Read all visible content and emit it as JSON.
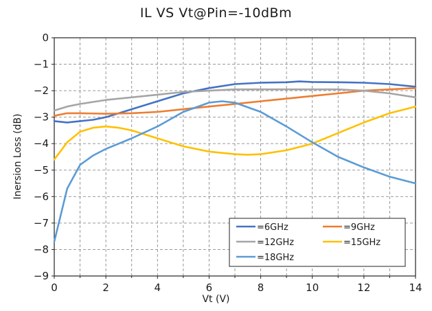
{
  "chart_data": {
    "type": "line",
    "title": "IL  VS  Vt@Pin=-10dBm",
    "xlabel": "Vt (V)",
    "ylabel": "Inersion Loss (dB)",
    "xlim": [
      0,
      14
    ],
    "ylim": [
      -9,
      0
    ],
    "xticks": [
      "0",
      "2",
      "4",
      "6",
      "8",
      "10",
      "12",
      "14"
    ],
    "yticks": [
      "0",
      "-1",
      "-2",
      "-3",
      "-4",
      "-5",
      "-6",
      "-7",
      "-8",
      "-9"
    ],
    "grid": true,
    "legend_position": "bottom-right",
    "series": [
      {
        "name": "=6GHz",
        "color": "#4472C4",
        "x": [
          0,
          0.5,
          1,
          1.5,
          2,
          3,
          4,
          5,
          6,
          7,
          8,
          9,
          9.5,
          10,
          11,
          12,
          13,
          14
        ],
        "y": [
          -3.15,
          -3.2,
          -3.15,
          -3.1,
          -3.0,
          -2.7,
          -2.4,
          -2.1,
          -1.9,
          -1.75,
          -1.7,
          -1.68,
          -1.65,
          -1.67,
          -1.68,
          -1.7,
          -1.75,
          -1.85
        ]
      },
      {
        "name": "=9GHz",
        "color": "#ED7D31",
        "x": [
          0,
          0.5,
          1,
          2,
          3,
          4,
          5,
          6,
          7,
          8,
          9,
          10,
          11,
          12,
          13,
          14
        ],
        "y": [
          -2.95,
          -2.85,
          -2.85,
          -2.87,
          -2.85,
          -2.8,
          -2.7,
          -2.6,
          -2.5,
          -2.4,
          -2.3,
          -2.2,
          -2.1,
          -2.0,
          -1.95,
          -1.9
        ]
      },
      {
        "name": "=12GHz",
        "color": "#A5A5A5",
        "x": [
          0,
          0.5,
          1,
          2,
          3,
          4,
          5,
          6,
          7,
          8,
          9,
          10,
          11,
          12,
          13,
          14
        ],
        "y": [
          -2.75,
          -2.6,
          -2.5,
          -2.35,
          -2.25,
          -2.15,
          -2.05,
          -2.0,
          -1.95,
          -1.95,
          -1.95,
          -1.95,
          -1.95,
          -2.0,
          -2.1,
          -2.25
        ]
      },
      {
        "name": "=15GHz",
        "color": "#FFC000",
        "x": [
          0,
          0.5,
          1,
          1.5,
          2,
          2.5,
          3,
          4,
          5,
          6,
          7,
          7.5,
          8,
          9,
          10,
          11,
          12,
          13,
          14
        ],
        "y": [
          -4.6,
          -3.95,
          -3.55,
          -3.4,
          -3.35,
          -3.4,
          -3.5,
          -3.8,
          -4.1,
          -4.3,
          -4.4,
          -4.42,
          -4.4,
          -4.25,
          -4.0,
          -3.6,
          -3.2,
          -2.85,
          -2.6
        ]
      },
      {
        "name": "=18GHz",
        "color": "#5B9BD5",
        "x": [
          0,
          0.5,
          1,
          1.5,
          2,
          3,
          4,
          5,
          6,
          6.5,
          7,
          8,
          9,
          10,
          11,
          12,
          13,
          14
        ],
        "y": [
          -7.7,
          -5.7,
          -4.8,
          -4.45,
          -4.2,
          -3.8,
          -3.35,
          -2.8,
          -2.45,
          -2.4,
          -2.45,
          -2.8,
          -3.35,
          -3.95,
          -4.5,
          -4.9,
          -5.25,
          -5.5
        ]
      }
    ]
  }
}
